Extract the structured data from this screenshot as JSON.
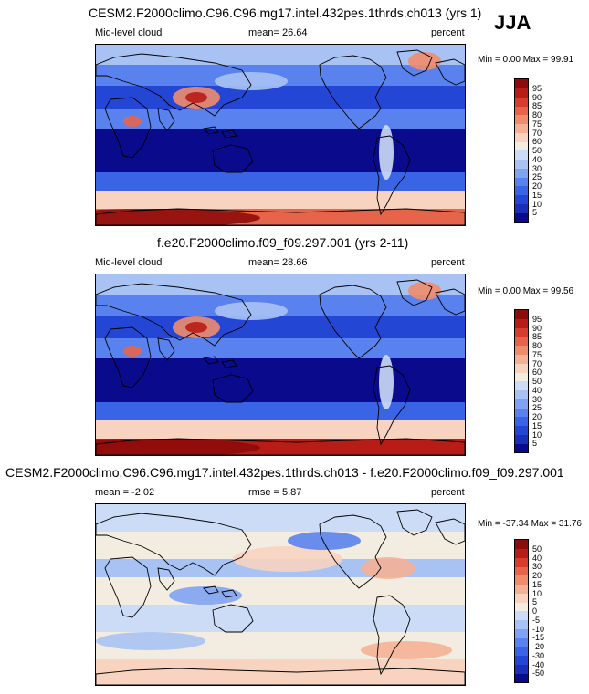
{
  "season": "JJA",
  "panels": [
    {
      "title": "CESM2.F2000climo.C96.C96.mg17.intel.432pes.1thrds.ch013 (yrs 1)",
      "left_label": "Mid-level cloud",
      "center_label": "mean=  26.64",
      "units": "percent",
      "minmax": "Min =   0.00 Max =  99.91"
    },
    {
      "title": "f.e20.F2000climo.f09_f09.297.001 (yrs 2-11)",
      "left_label": "Mid-level cloud",
      "center_label": "mean=  28.66",
      "units": "percent",
      "minmax": "Min =   0.00 Max =  99.56"
    },
    {
      "title": "CESM2.F2000climo.C96.C96.mg17.intel.432pes.1thrds.ch013 - f.e20.F2000climo.f09_f09.297.001",
      "left_label": "mean =  -2.02",
      "center_label": "rmse =  5.87",
      "units": "percent",
      "minmax": "Min = -37.34 Max =  31.76"
    }
  ],
  "chart_data": [
    {
      "type": "heatmap",
      "title": "CESM2.F2000climo.C96.C96.mg17.intel.432pes.1thrds.ch013 (yrs 1)",
      "variable": "Mid-level cloud",
      "units": "percent",
      "mean": 26.64,
      "min": 0.0,
      "max": 99.91,
      "colorbar_levels": [
        5,
        10,
        15,
        20,
        25,
        30,
        40,
        50,
        60,
        70,
        75,
        80,
        85,
        90,
        95
      ],
      "colorbar_colors": [
        "#0a0a8c",
        "#1a2fb8",
        "#2446d4",
        "#3a64e6",
        "#5a82ee",
        "#7fa2f2",
        "#a9c2f4",
        "#cddcf6",
        "#f2ede0",
        "#f7d3c0",
        "#f5b195",
        "#ef8c6c",
        "#e6654a",
        "#d63d2c",
        "#b71d16",
        "#8e0b0b"
      ]
    },
    {
      "type": "heatmap",
      "title": "f.e20.F2000climo.f09_f09.297.001 (yrs 2-11)",
      "variable": "Mid-level cloud",
      "units": "percent",
      "mean": 28.66,
      "min": 0.0,
      "max": 99.56,
      "colorbar_levels": [
        5,
        10,
        15,
        20,
        25,
        30,
        40,
        50,
        60,
        70,
        75,
        80,
        85,
        90,
        95
      ],
      "colorbar_colors": [
        "#0a0a8c",
        "#1a2fb8",
        "#2446d4",
        "#3a64e6",
        "#5a82ee",
        "#7fa2f2",
        "#a9c2f4",
        "#cddcf6",
        "#f2ede0",
        "#f7d3c0",
        "#f5b195",
        "#ef8c6c",
        "#e6654a",
        "#d63d2c",
        "#b71d16",
        "#8e0b0b"
      ]
    },
    {
      "type": "heatmap",
      "title": "CESM2.F2000climo.C96.C96.mg17.intel.432pes.1thrds.ch013 - f.e20.F2000climo.f09_f09.297.001",
      "units": "percent",
      "mean": -2.02,
      "rmse": 5.87,
      "min": -37.34,
      "max": 31.76,
      "colorbar_levels": [
        -50,
        -40,
        -30,
        -20,
        -15,
        -10,
        -5,
        0,
        5,
        10,
        15,
        20,
        30,
        40,
        50
      ],
      "colorbar_colors": [
        "#0a0a8c",
        "#1a2fb8",
        "#2446d4",
        "#3a64e6",
        "#5a82ee",
        "#7fa2f2",
        "#a9c2f4",
        "#cddcf6",
        "#f2ede0",
        "#f7d3c0",
        "#f5b195",
        "#ef8c6c",
        "#e6654a",
        "#d63d2c",
        "#b71d16",
        "#8e0b0b"
      ]
    }
  ]
}
